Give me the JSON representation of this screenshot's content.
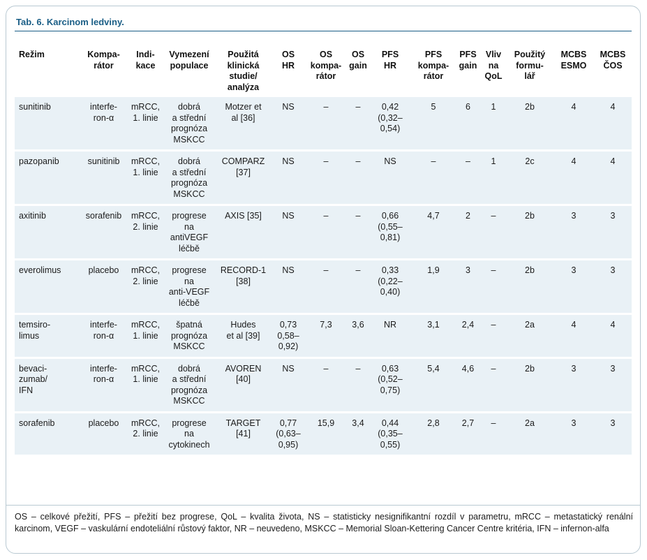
{
  "title": "Tab. 6. Karcinom ledviny.",
  "columns": [
    "Režim",
    "Kompa-\nrátor",
    "Indi-\nkace",
    "Vymezení\npopulace",
    "Použitá\nklinická\nstudie/\nanalýza",
    "OS\nHR",
    "OS\nkompa-\nrátor",
    "OS\ngain",
    "PFS\nHR",
    "PFS\nkompa-\nrátor",
    "PFS\ngain",
    "Vliv\nna\nQoL",
    "Použitý\nformu-\nlář",
    "MCBS\nESMO",
    "MCBS\nČOS"
  ],
  "rows": [
    [
      "sunitinib",
      "interfe-\nron-α",
      "mRCC,\n1. linie",
      "dobrá\na střední\nprognóza\nMSKCC",
      "Motzer et\nal [36]",
      "NS",
      "–",
      "–",
      "0,42\n(0,32–\n0,54)",
      "5",
      "6",
      "1",
      "2b",
      "4",
      "4"
    ],
    [
      "pazopanib",
      "sunitinib",
      "mRCC,\n1. linie",
      "dobrá\na střední\nprognóza\nMSKCC",
      "COMPARZ\n[37]",
      "NS",
      "–",
      "–",
      "NS",
      "–",
      "–",
      "1",
      "2c",
      "4",
      "4"
    ],
    [
      "axitinib",
      "sorafenib",
      "mRCC,\n2. linie",
      "progrese\nna\nantiVEGF\nléčbě",
      "AXIS [35]",
      "NS",
      "–",
      "–",
      "0,66\n(0,55–\n0,81)",
      "4,7",
      "2",
      "–",
      "2b",
      "3",
      "3"
    ],
    [
      "everolimus",
      "placebo",
      "mRCC,\n2. linie",
      "progrese\nna\nanti-VEGF\nléčbě",
      "RECORD-1\n[38]",
      "NS",
      "–",
      "–",
      "0,33\n(0,22–\n0,40)",
      "1,9",
      "3",
      "–",
      "2b",
      "3",
      "3"
    ],
    [
      "temsiro-\nlimus",
      "interfe-\nron-α",
      "mRCC,\n1. linie",
      "špatná\nprognóza\nMSKCC",
      "Hudes\net al [39]",
      "0,73\n0,58–\n0,92)",
      "7,3",
      "3,6",
      "NR",
      "3,1",
      "2,4",
      "–",
      "2a",
      "4",
      "4"
    ],
    [
      "bevaci-\nzumab/\nIFN",
      "interfe-\nron-α",
      "mRCC,\n1. linie",
      "dobrá\na střední\nprognóza\nMSKCC",
      "AVOREN\n[40]",
      "NS",
      "–",
      "–",
      "0,63\n(0,52–\n0,75)",
      "5,4",
      "4,6",
      "–",
      "2b",
      "3",
      "3"
    ],
    [
      "sorafenib",
      "placebo",
      "mRCC,\n2. linie",
      "progrese\nna\ncytokinech",
      "TARGET\n[41]",
      "0,77\n(0,63–\n0,95)",
      "15,9",
      "3,4",
      "0,44\n(0,35–\n0,55)",
      "2,8",
      "2,7",
      "–",
      "2a",
      "3",
      "3"
    ]
  ],
  "notes": "OS – celkové přežití, PFS – přežití bez progrese, QoL – kvalita života, NS – statisticky nesignifikantní rozdíl v parametru, mRCC – metastatický renální karcinom, VEGF – vaskulární endoteliální růstový faktor, NR – neuvedeno, MSKCC – Memorial Sloan-Kettering Cancer Centre kritéria, IFN – infernon-alfa",
  "colors": {
    "title": "#1a5e86",
    "row_fill": "#e9f1f6",
    "frame": "#b9c9d2"
  }
}
